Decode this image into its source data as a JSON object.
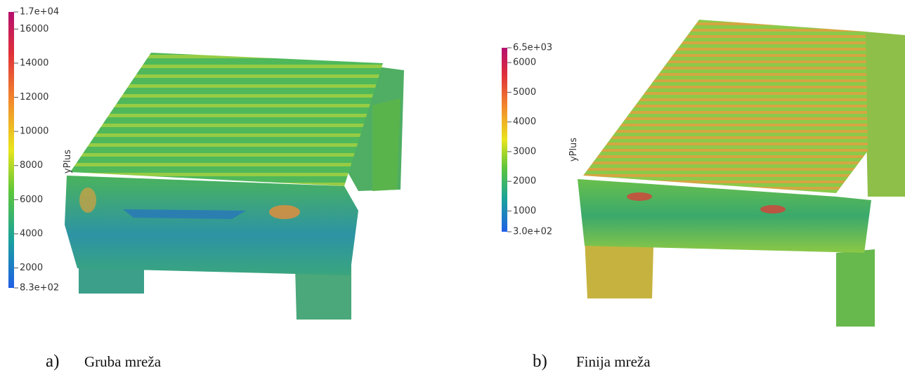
{
  "panels": [
    {
      "label": "a)",
      "caption": "Gruba mreža",
      "colorbar": {
        "title": "yPlus",
        "ticks": [
          {
            "value": 17000,
            "label": "1.7e+04"
          },
          16000,
          14000,
          12000,
          10000,
          8000,
          6000,
          4000,
          2000,
          {
            "value": 830,
            "label": "8.3e+02"
          }
        ]
      }
    },
    {
      "label": "b)",
      "caption": "Finija mreža",
      "colorbar": {
        "title": "yPlus",
        "ticks": [
          {
            "value": 6500,
            "label": "6.5e+03"
          },
          6000,
          5000,
          4000,
          3000,
          2000,
          1000,
          {
            "value": 300,
            "label": "3.0e+02"
          }
        ]
      }
    }
  ]
}
